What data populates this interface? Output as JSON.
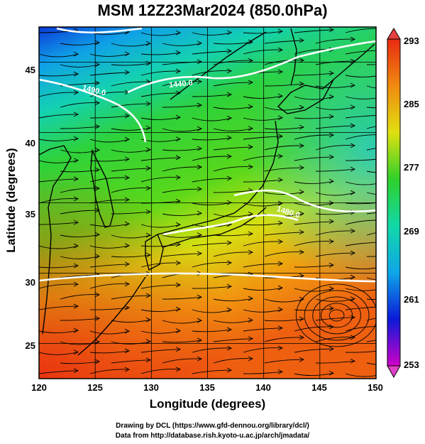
{
  "title": "MSM 12Z23Mar2024 (850.0hPa)",
  "axes": {
    "xlabel": "Longitude (degrees)",
    "ylabel": "Latitude  (degrees)",
    "x_ticks": [
      "120",
      "125",
      "130",
      "135",
      "140",
      "145",
      "150"
    ],
    "y_ticks": [
      "45",
      "40",
      "35",
      "30",
      "25"
    ],
    "xlim": [
      120,
      150
    ],
    "ylim": [
      22.5,
      47.5
    ]
  },
  "colorbar": {
    "ticks": [
      "293",
      "285",
      "277",
      "269",
      "261",
      "253"
    ],
    "range": [
      253,
      293
    ],
    "palette": [
      "#d100c8",
      "#0a1ad8",
      "#0fa6e8",
      "#12d8a8",
      "#2fd02a",
      "#e0e010",
      "#f08a10",
      "#e82a10"
    ]
  },
  "contours": {
    "labels": [
      "1440.0",
      "1490.0",
      "1480.0"
    ],
    "color": "#ffffff"
  },
  "credits": {
    "line1": "Drawing by DCL (https://www.gfd-dennou.org/library/dcl/)",
    "line2": "Data from http://database.rish.kyoto-u.ac.jp/arch/jmadata/"
  }
}
